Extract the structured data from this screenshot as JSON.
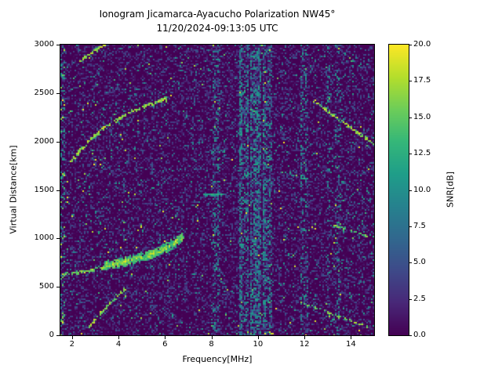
{
  "chart_data": {
    "type": "heatmap",
    "title": "Ionogram Jicamarca-Ayacucho Polarization NW45°",
    "subtitle": "11/20/2024-09:13:05 UTC",
    "xlabel": "Frequency[MHz]",
    "ylabel": "Virtual Distance[km]",
    "xlim": [
      1.5,
      15.0
    ],
    "ylim": [
      0,
      3000
    ],
    "xticks": [
      2,
      4,
      6,
      8,
      10,
      12,
      14
    ],
    "xtick_labels": [
      "2",
      "4",
      "6",
      "8",
      "10",
      "12",
      "14"
    ],
    "yticks": [
      0,
      500,
      1000,
      1500,
      2000,
      2500,
      3000
    ],
    "ytick_labels": [
      "0",
      "500",
      "1000",
      "1500",
      "2000",
      "2500",
      "3000"
    ],
    "colorbar": {
      "label": "SNR[dB]",
      "min": 0.0,
      "max": 20.0,
      "ticks": [
        0.0,
        2.5,
        5.0,
        7.5,
        10.0,
        12.5,
        15.0,
        17.5,
        20.0
      ],
      "tick_labels": [
        "0.0",
        "2.5",
        "5.0",
        "7.5",
        "10.0",
        "12.5",
        "15.0",
        "17.5",
        "20.0"
      ],
      "colormap": "viridis"
    },
    "background_snr_db": 0,
    "noise": {
      "speckle_fraction": 0.42,
      "teal_fraction": 0.03,
      "bright_fraction": 0.004,
      "left_edge_mhz": 1.68,
      "bottom_edge_km": 20
    },
    "rfi_bands": [
      {
        "range_mhz": [
          8.08,
          8.38
        ],
        "strength": 0.55
      },
      {
        "range_mhz": [
          9.2,
          9.6
        ],
        "strength": 0.95
      },
      {
        "range_mhz": [
          9.65,
          10.12
        ],
        "strength": 1.0
      },
      {
        "range_mhz": [
          10.18,
          10.62
        ],
        "strength": 0.9
      },
      {
        "range_mhz": [
          11.85,
          12.18
        ],
        "strength": 0.65
      },
      {
        "range_mhz": [
          12.95,
          13.1
        ],
        "strength": 0.3
      },
      {
        "range_mhz": [
          13.3,
          13.55
        ],
        "strength": 0.35
      }
    ],
    "echo_traces": [
      {
        "name": "F-trace-main",
        "style": "solid",
        "width_km": 55,
        "snr_db": [
          9,
          20
        ],
        "density": 3.2,
        "points": [
          [
            3.4,
            715
          ],
          [
            4.0,
            745
          ],
          [
            4.6,
            780
          ],
          [
            5.2,
            820
          ],
          [
            5.8,
            870
          ],
          [
            6.3,
            930
          ],
          [
            6.75,
            1010
          ]
        ]
      },
      {
        "name": "F-trace-leading-edge",
        "style": "dotted",
        "width_km": 18,
        "snr_db": [
          11,
          20
        ],
        "density": 0.9,
        "points": [
          [
            1.62,
            630
          ],
          [
            2.2,
            645
          ],
          [
            2.8,
            665
          ],
          [
            3.4,
            705
          ]
        ]
      },
      {
        "name": "second-hop-arc",
        "style": "dotted",
        "width_km": 16,
        "snr_db": [
          12,
          20
        ],
        "density": 0.85,
        "points": [
          [
            1.95,
            1795
          ],
          [
            2.6,
            1975
          ],
          [
            3.3,
            2130
          ],
          [
            4.2,
            2265
          ],
          [
            5.2,
            2370
          ],
          [
            6.1,
            2445
          ]
        ]
      },
      {
        "name": "third-hop-arc",
        "style": "dotted",
        "width_km": 14,
        "snr_db": [
          12,
          20
        ],
        "density": 0.8,
        "points": [
          [
            2.35,
            2830
          ],
          [
            2.9,
            2925
          ],
          [
            3.45,
            3000
          ]
        ]
      },
      {
        "name": "oblique-trace-upper-right",
        "style": "dotted",
        "width_km": 14,
        "snr_db": [
          12,
          20
        ],
        "density": 0.7,
        "points": [
          [
            12.4,
            2420
          ],
          [
            13.3,
            2260
          ],
          [
            14.2,
            2110
          ],
          [
            15.0,
            1975
          ]
        ]
      },
      {
        "name": "oblique-trace-mid-right",
        "style": "dotted",
        "width_km": 12,
        "snr_db": [
          10,
          18
        ],
        "density": 0.5,
        "points": [
          [
            13.3,
            1130
          ],
          [
            14.2,
            1060
          ],
          [
            15.0,
            1005
          ]
        ]
      },
      {
        "name": "oblique-trace-lower-right",
        "style": "dotted",
        "width_km": 12,
        "snr_db": [
          11,
          19
        ],
        "density": 0.55,
        "points": [
          [
            11.9,
            330
          ],
          [
            12.9,
            245
          ],
          [
            13.9,
            160
          ],
          [
            14.8,
            80
          ]
        ]
      },
      {
        "name": "low-arc-lower-left",
        "style": "dotted",
        "width_km": 12,
        "snr_db": [
          12,
          20
        ],
        "density": 0.7,
        "points": [
          [
            2.7,
            70
          ],
          [
            3.2,
            215
          ],
          [
            3.75,
            360
          ],
          [
            4.3,
            480
          ]
        ]
      },
      {
        "name": "horizontal-dash-1450km",
        "style": "solid",
        "width_km": 10,
        "snr_db": [
          8,
          14
        ],
        "density": 1.4,
        "points": [
          [
            7.7,
            1455
          ],
          [
            8.5,
            1450
          ]
        ]
      }
    ]
  }
}
